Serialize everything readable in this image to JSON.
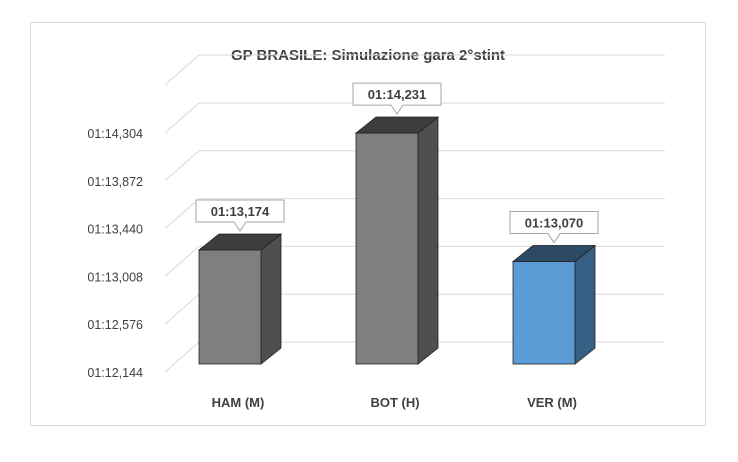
{
  "chart_data": {
    "type": "bar",
    "title": "GP BRASILE: Simulazione gara 2°stint",
    "categories": [
      "HAM (M)",
      "BOT (H)",
      "VER (M)"
    ],
    "values_seconds": [
      73.174,
      74.231,
      73.07
    ],
    "data_labels": [
      "01:13,174",
      "01:14,231",
      "01:13,070"
    ],
    "y_ticks": [
      "01:12,144",
      "01:12,576",
      "01:13,008",
      "01:13,440",
      "01:13,872",
      "01:14,304"
    ],
    "y_tick_values_seconds": [
      72.144,
      72.576,
      73.008,
      73.44,
      73.872,
      74.304
    ],
    "ylim_seconds": [
      72.144,
      74.304
    ],
    "grid": true,
    "style": "3d-columns",
    "colors": {
      "default": "#7f7f7f",
      "highlight": "#5b9bd5"
    },
    "highlight_index": 2
  }
}
